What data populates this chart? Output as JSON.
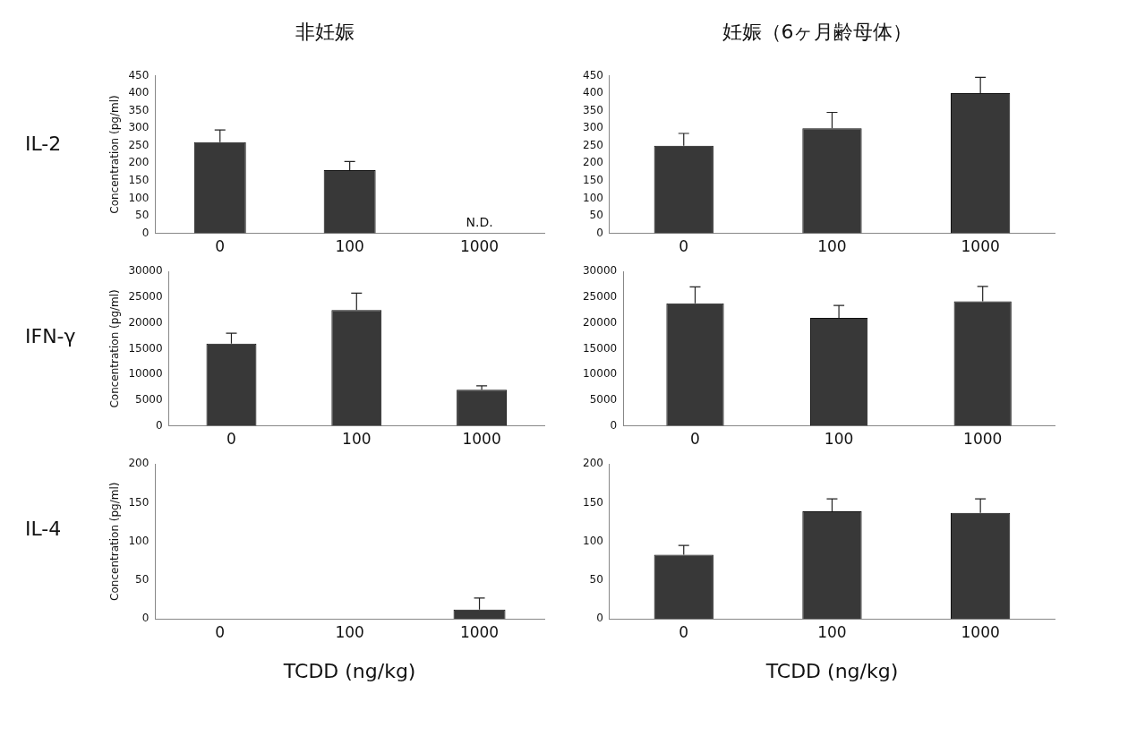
{
  "chart_data": [
    {
      "type": "bar",
      "title": "非妊娠",
      "subtitle": "IL-2",
      "ylabel": "Concentration (pg/ml)",
      "categories": [
        "0",
        "100",
        "1000"
      ],
      "values": [
        260,
        180,
        0
      ],
      "errors": [
        [
          260,
          295
        ],
        [
          180,
          205
        ],
        null
      ],
      "color": "#383838",
      "ylim": [
        0,
        450
      ],
      "yticks": [
        0,
        50,
        100,
        150,
        200,
        250,
        300,
        350,
        400,
        450
      ],
      "annotations": [
        {
          "text": "N.D.",
          "x": "1000",
          "y": 0
        }
      ]
    },
    {
      "type": "bar",
      "title": "妊娠（6ヶ月齢母体）",
      "categories": [
        "0",
        "100",
        "1000"
      ],
      "values": [
        250,
        300,
        400
      ],
      "errors": [
        [
          250,
          285
        ],
        [
          300,
          345
        ],
        [
          400,
          445
        ]
      ],
      "color": "#383838",
      "ylim": [
        0,
        450
      ],
      "yticks": [
        0,
        50,
        100,
        150,
        200,
        250,
        300,
        350,
        400,
        450
      ]
    },
    {
      "type": "bar",
      "subtitle": "IFN-γ",
      "ylabel": "Concentration (pg/ml)",
      "categories": [
        "0",
        "100",
        "1000"
      ],
      "values": [
        16000,
        22500,
        7000
      ],
      "errors": [
        [
          16000,
          18000
        ],
        [
          22500,
          25800
        ],
        [
          7000,
          7800
        ]
      ],
      "color": "#383838",
      "ylim": [
        0,
        30000
      ],
      "yticks": [
        0,
        5000,
        10000,
        15000,
        20000,
        25000,
        30000
      ]
    },
    {
      "type": "bar",
      "categories": [
        "0",
        "100",
        "1000"
      ],
      "values": [
        23800,
        21000,
        24200
      ],
      "errors": [
        [
          23800,
          27000
        ],
        [
          21000,
          23400
        ],
        [
          24200,
          27100
        ]
      ],
      "color": "#383838",
      "ylim": [
        0,
        30000
      ],
      "yticks": [
        0,
        5000,
        10000,
        15000,
        20000,
        25000,
        30000
      ]
    },
    {
      "type": "bar",
      "subtitle": "IL-4",
      "ylabel": "Concentration (pg/ml)",
      "xlabel": "TCDD (ng/kg)",
      "categories": [
        "0",
        "100",
        "1000"
      ],
      "values": [
        0,
        0,
        12
      ],
      "errors": [
        null,
        null,
        [
          12,
          27
        ]
      ],
      "color": "#383838",
      "ylim": [
        0,
        200
      ],
      "yticks": [
        0,
        50,
        100,
        150,
        200
      ]
    },
    {
      "type": "bar",
      "xlabel": "TCDD (ng/kg)",
      "categories": [
        "0",
        "100",
        "1000"
      ],
      "values": [
        83,
        139,
        137
      ],
      "errors": [
        [
          83,
          95
        ],
        [
          139,
          155
        ],
        [
          137,
          155
        ]
      ],
      "color": "#383838",
      "ylim": [
        0,
        200
      ],
      "yticks": [
        0,
        50,
        100,
        150,
        200
      ]
    }
  ]
}
